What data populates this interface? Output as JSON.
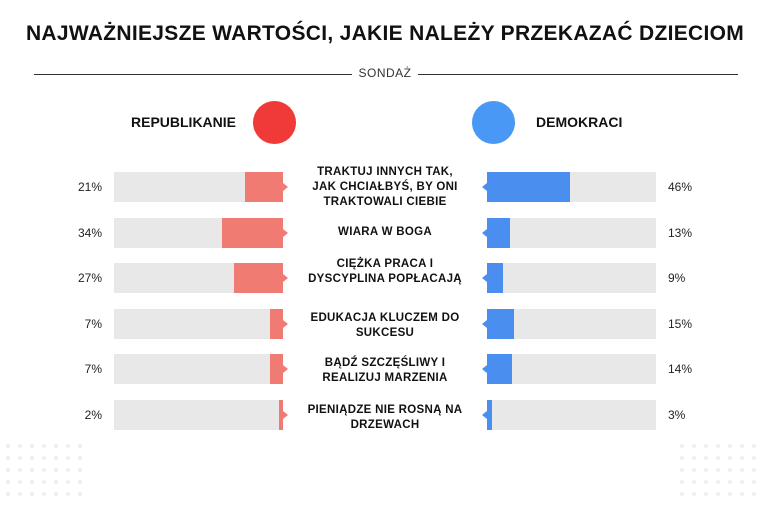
{
  "title": "NAJWAŻNIEJSZE WARTOŚCI, JAKIE NALEŻY PRZEKAZAĆ DZIECIOM",
  "subtitle": "SONDAŻ",
  "colors": {
    "republican": "#f07b72",
    "republican_dot": "#f03a37",
    "democrat": "#4a8fef",
    "democrat_dot": "#4a98f5",
    "track": "#e8e8e8"
  },
  "chart_data": {
    "type": "bar",
    "title": "NAJWAŻNIEJSZE WARTOŚCI, JAKIE NALEŻY PRZEKAZAĆ DZIECIOM",
    "xlabel": "",
    "ylabel": "",
    "xlim": [
      0,
      100
    ],
    "categories": [
      "TRAKTUJ INNYCH TAK, JAK CHCIAŁBYŚ, BY ONI TRAKTOWALI CIEBIE",
      "WIARA W BOGA",
      "CIĘŻKA PRACA I DYSCYPLINA POPŁACAJĄ",
      "EDUKACJA KLUCZEM DO SUKCESU",
      "BĄDŹ SZCZĘŚLIWY I REALIZUJ MARZENIA",
      "PIENIĄDZE NIE ROSNĄ NA DRZEWACH"
    ],
    "series": [
      {
        "name": "REPUBLIKANIE",
        "values": [
          21,
          34,
          27,
          7,
          7,
          2
        ],
        "labels": [
          "21%",
          "34%",
          "27%",
          "7%",
          "7%",
          "2%"
        ]
      },
      {
        "name": "DEMOKRACI",
        "values": [
          46,
          13,
          9,
          15,
          14,
          3
        ],
        "labels": [
          "46%",
          "13%",
          "9%",
          "15%",
          "14%",
          "3%"
        ]
      }
    ]
  }
}
